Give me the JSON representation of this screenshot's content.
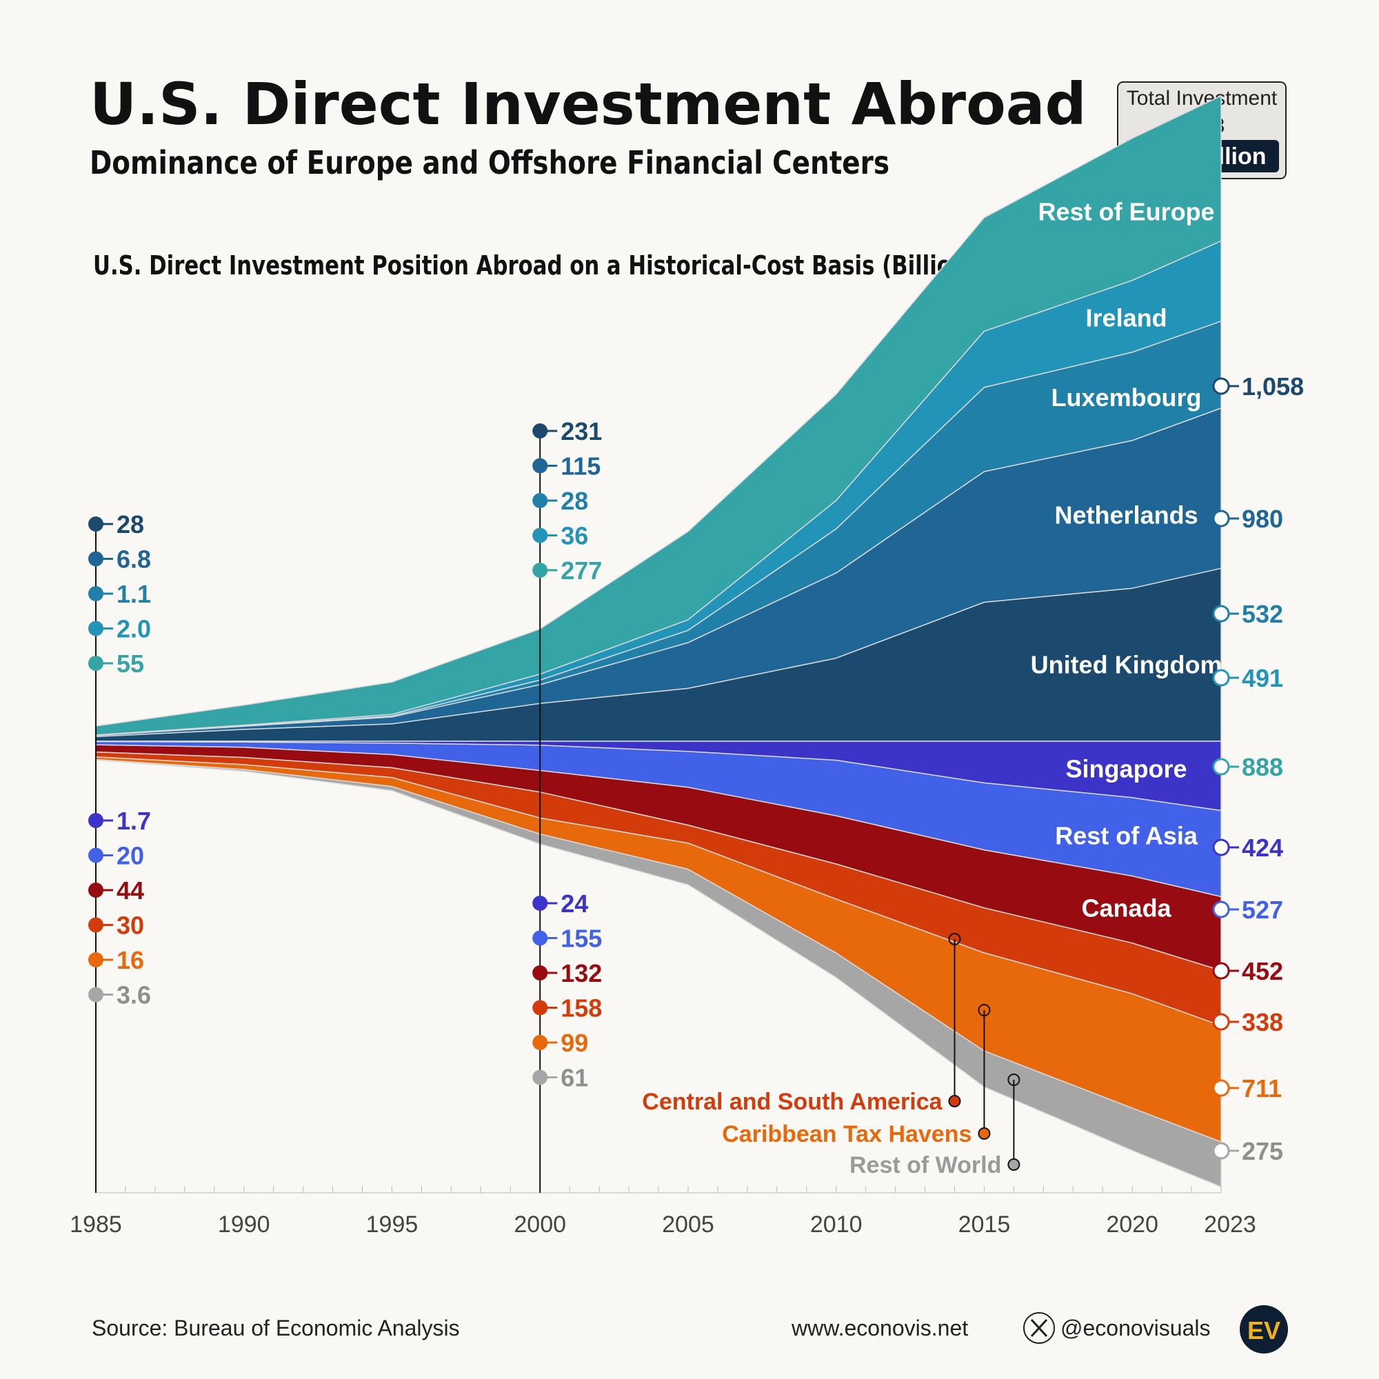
{
  "header": {
    "title": "U.S. Direct Investment Abroad",
    "subtitle": "Dominance of Europe and Offshore Financial Centers"
  },
  "total_box": {
    "line1": "Total Investment",
    "line2": "2023",
    "value": "$6.7 Trillion"
  },
  "footer": {
    "source": "Source: Bureau of Economic Analysis",
    "website": "www.econovis.net",
    "handle": "@econovisuals",
    "logo": "EV"
  },
  "chart_data": {
    "type": "area",
    "title": "U.S. Direct Investment Position Abroad on a Historical-Cost Basis (Billion US$)",
    "x_ticks": [
      1985,
      1990,
      1995,
      2000,
      2005,
      2010,
      2015,
      2020,
      2023
    ],
    "xlim": [
      1985,
      2023
    ],
    "years": [
      1985,
      1990,
      1995,
      2000,
      2005,
      2010,
      2015,
      2020,
      2023
    ],
    "top_series": [
      {
        "name": "United Kingdom",
        "color": "#1c4a6e",
        "values": [
          28,
          72,
          106,
          231,
          323,
          508,
          850,
          936,
          1058
        ],
        "label_1985": "28",
        "label_2000": "231",
        "label_2023": "1,058"
      },
      {
        "name": "Netherlands",
        "color": "#1f6696",
        "values": [
          6.8,
          19,
          42,
          115,
          280,
          521,
          800,
          904,
          980
        ],
        "label_1985": "6.8",
        "label_2000": "115",
        "label_2023": "980"
      },
      {
        "name": "Luxembourg",
        "color": "#2180a8",
        "values": [
          1.1,
          2,
          6,
          28,
          75,
          270,
          515,
          540,
          532
        ],
        "label_1985": "1.1",
        "label_2000": "28",
        "label_2023": "532"
      },
      {
        "name": "Ireland",
        "color": "#2294b8",
        "values": [
          2.0,
          5,
          10,
          36,
          65,
          174,
          344,
          440,
          491
        ],
        "label_1985": "2.0",
        "label_2000": "36",
        "label_2023": "491"
      },
      {
        "name": "Rest of Europe",
        "color": "#35a4a6",
        "values": [
          55,
          123,
          198,
          277,
          540,
          650,
          695,
          870,
          888
        ],
        "label_1985": "55",
        "label_2000": "277",
        "label_2023": "888"
      }
    ],
    "bottom_series": [
      {
        "name": "Singapore",
        "color": "#3c34c8",
        "values": [
          1.7,
          5,
          12,
          24,
          62,
          116,
          255,
          345,
          424
        ],
        "label_1985": "1.7",
        "label_2000": "24",
        "label_2023": "424"
      },
      {
        "name": "Rest of Asia",
        "color": "#4161e8",
        "values": [
          20,
          32,
          70,
          155,
          220,
          340,
          410,
          480,
          527
        ],
        "label_1985": "20",
        "label_2000": "155",
        "label_2023": "527"
      },
      {
        "name": "Canada",
        "color": "#980b10",
        "values": [
          44,
          62,
          80,
          132,
          231,
          295,
          355,
          410,
          452
        ],
        "label_1985": "44",
        "label_2000": "132",
        "label_2023": "452"
      },
      {
        "name": "Central and South America",
        "color": "#d33b0b",
        "values": [
          30,
          44,
          60,
          158,
          110,
          215,
          275,
          310,
          338
        ],
        "label_1985": "30",
        "label_2000": "158",
        "label_2023": "338"
      },
      {
        "name": "Caribbean Tax Havens",
        "color": "#e8690c",
        "values": [
          16,
          30,
          55,
          99,
          160,
          330,
          600,
          700,
          711
        ],
        "label_1985": "16",
        "label_2000": "99",
        "label_2023": "711"
      },
      {
        "name": "Rest of World",
        "color": "#a6a6a6",
        "values": [
          3.6,
          10,
          25,
          61,
          95,
          150,
          220,
          260,
          275
        ],
        "label_1985": "3.6",
        "label_2000": "61",
        "label_2023": "275"
      }
    ],
    "grid": false,
    "legend": "inline"
  }
}
